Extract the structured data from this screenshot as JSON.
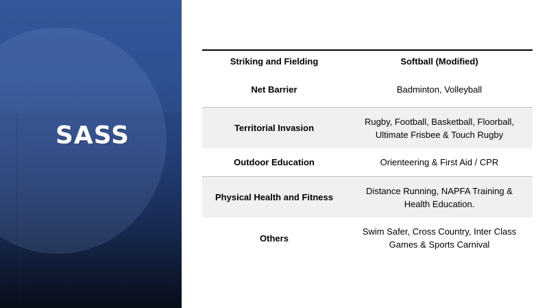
{
  "slide": {
    "title": "SASS"
  },
  "table": {
    "rows": [
      {
        "category": "Striking and Fielding",
        "activities": "Softball (Modified)",
        "activities_bold": true
      },
      {
        "category": "Net Barrier",
        "activities": "Badminton, Volleyball"
      },
      {
        "category": "Territorial Invasion",
        "activities": "Rugby, Football, Basketball, Floorball, Ultimate Frisbee & Touch Rugby"
      },
      {
        "category": "Outdoor Education",
        "activities": "Orienteering & First Aid / CPR"
      },
      {
        "category": "Physical Health and Fitness",
        "activities": "Distance Running, NAPFA Training & Health Education."
      },
      {
        "category": "Others",
        "activities": "Swim Safer, Cross Country, Inter Class Games & Sports Carnival"
      }
    ]
  },
  "colors": {
    "panel_top": "#2f5597",
    "panel_bottom": "#080d1a",
    "row_shade": "#f0f0f0"
  }
}
